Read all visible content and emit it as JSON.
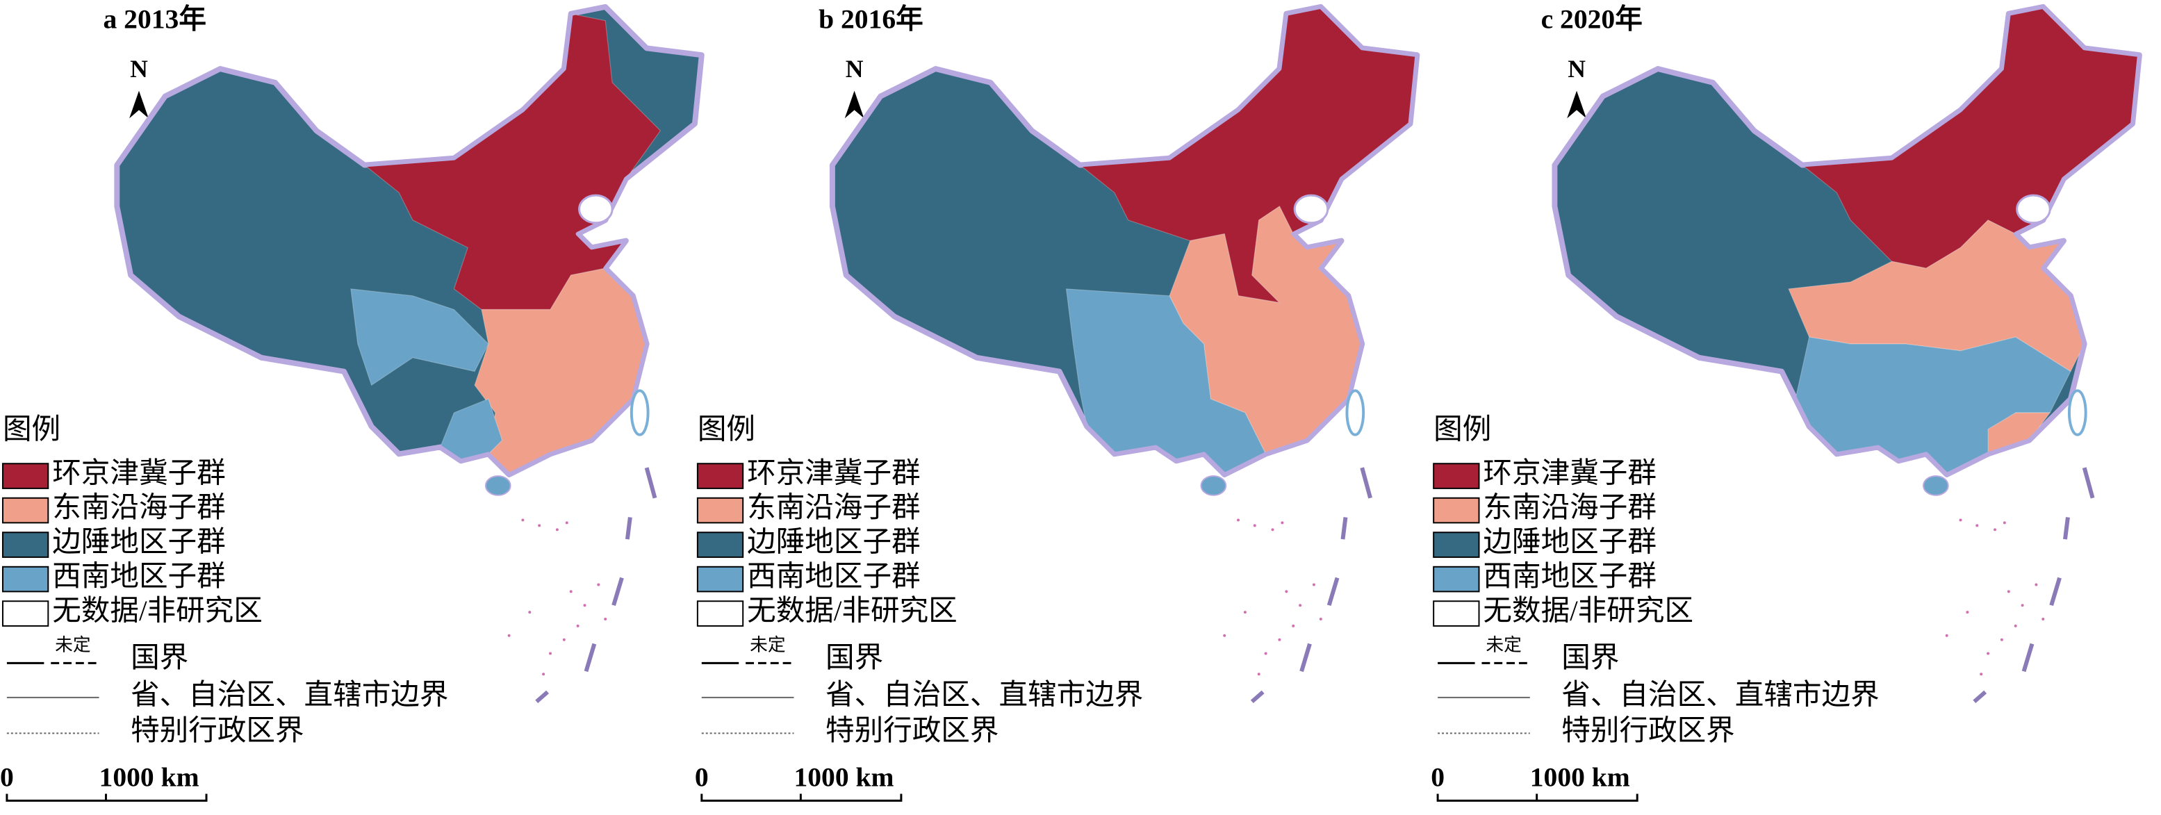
{
  "panels": [
    {
      "title": "a 2013年"
    },
    {
      "title": "b 2016年"
    },
    {
      "title": "c 2020年"
    }
  ],
  "north": "N",
  "legend": {
    "title": "图例",
    "items": [
      {
        "label": "环京津冀子群",
        "color": "#a82035"
      },
      {
        "label": "东南沿海子群",
        "color": "#f0a08a"
      },
      {
        "label": "边陲地区子群",
        "color": "#356a82"
      },
      {
        "label": "西南地区子群",
        "color": "#6aa3c8"
      },
      {
        "label": "无数据/非研究区",
        "color": "#ffffff"
      }
    ],
    "boundaries": [
      {
        "label": "国界",
        "note": "未定"
      },
      {
        "label": "省、自治区、直辖市边界"
      },
      {
        "label": "特别行政区界"
      }
    ]
  },
  "scale": {
    "start": "0",
    "end": "1000 km"
  }
}
